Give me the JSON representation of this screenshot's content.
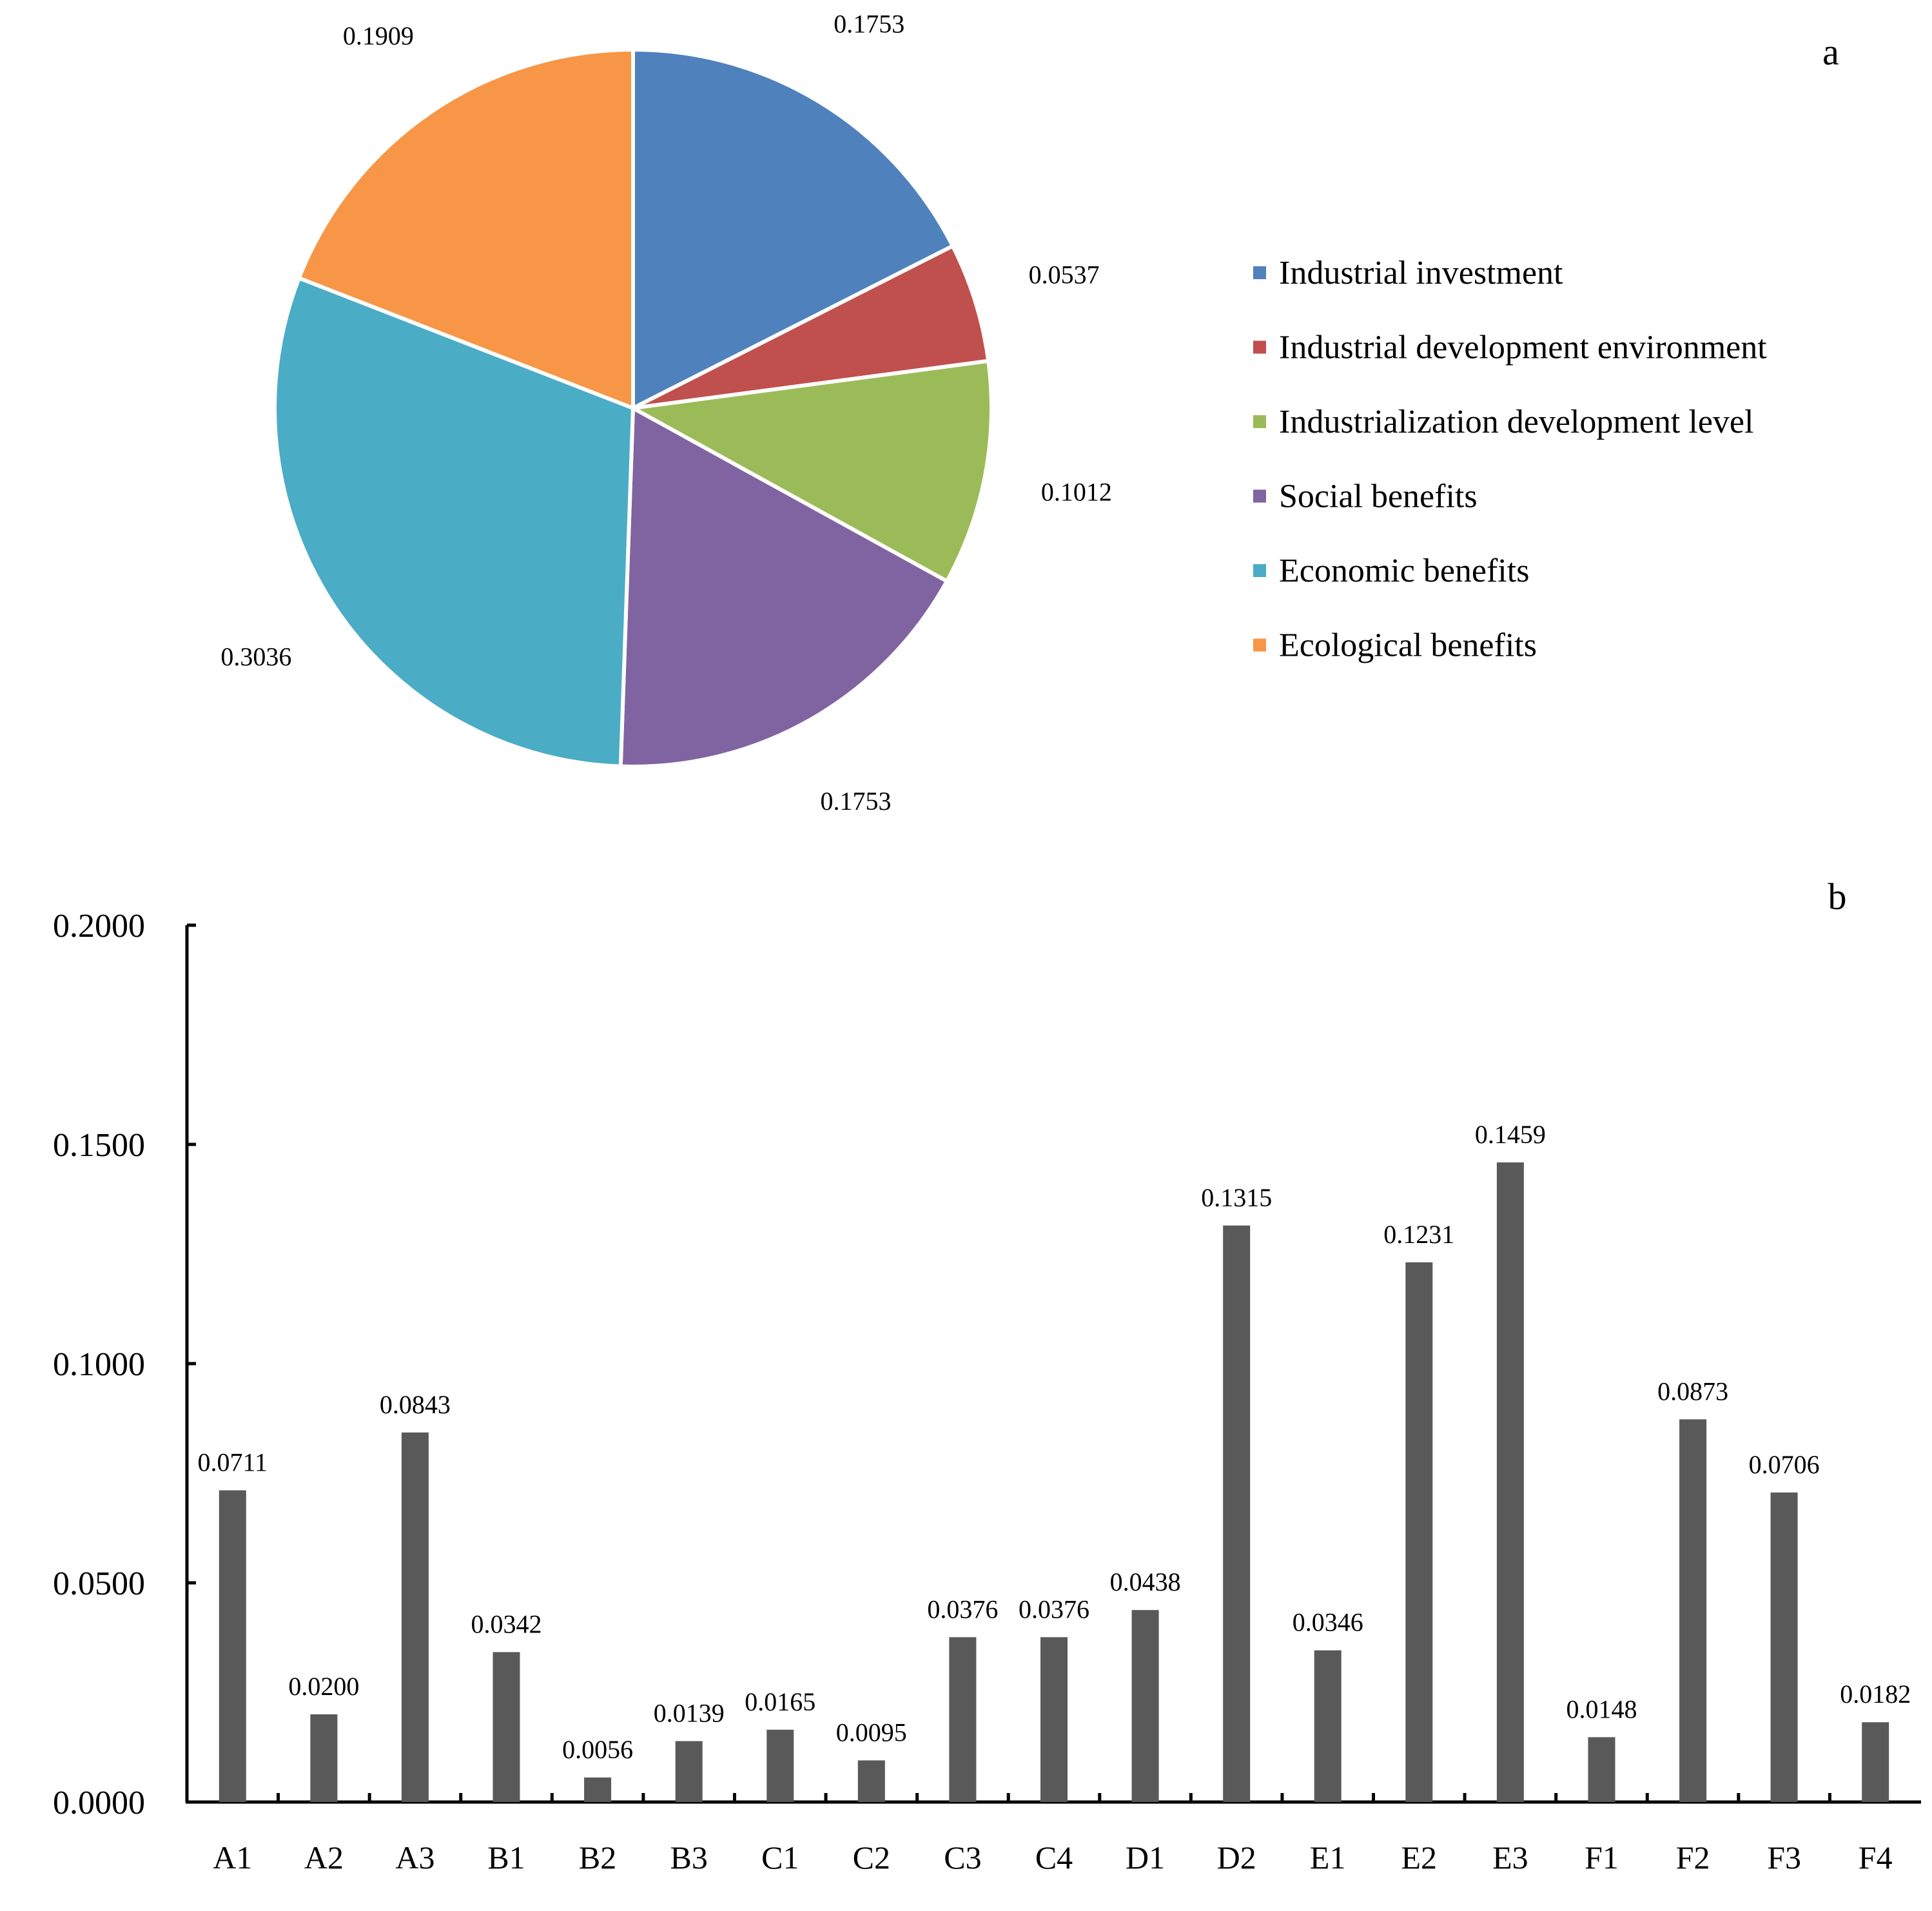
{
  "panels": {
    "a_label": "a",
    "b_label": "b"
  },
  "colors": {
    "industrial_investment": "#4F81BD",
    "industrial_development_environment": "#C0504D",
    "industrialization_development_level": "#9BBB59",
    "social_benefits": "#8064A2",
    "economic_benefits": "#4BACC6",
    "ecological_benefits": "#F79646",
    "bar": "#595959"
  },
  "chart_data": [
    {
      "type": "pie",
      "title": "a",
      "labels": [
        "Industrial investment",
        "Industrial development environment",
        "Industrialization development level",
        "Social benefits",
        "Economic benefits",
        "Ecological benefits"
      ],
      "values": [
        0.1753,
        0.0537,
        0.1012,
        0.1753,
        0.3036,
        0.1909
      ],
      "value_labels": [
        "0.1753",
        "0.0537",
        "0.1012",
        "0.1753",
        "0.3036",
        "0.1909"
      ],
      "colors": [
        "#4F81BD",
        "#C0504D",
        "#9BBB59",
        "#8064A2",
        "#4BACC6",
        "#F79646"
      ],
      "legend_position": "right"
    },
    {
      "type": "bar",
      "title": "b",
      "categories": [
        "A1",
        "A2",
        "A3",
        "B1",
        "B2",
        "B3",
        "C1",
        "C2",
        "C3",
        "C4",
        "D1",
        "D2",
        "E1",
        "E2",
        "E3",
        "F1",
        "F2",
        "F3",
        "F4"
      ],
      "values": [
        0.0711,
        0.02,
        0.0843,
        0.0342,
        0.0056,
        0.0139,
        0.0165,
        0.0095,
        0.0376,
        0.0376,
        0.0438,
        0.1315,
        0.0346,
        0.1231,
        0.1459,
        0.0148,
        0.0873,
        0.0706,
        0.0182
      ],
      "value_labels": [
        "0.0711",
        "0.0200",
        "0.0843",
        "0.0342",
        "0.0056",
        "0.0139",
        "0.0165",
        "0.0095",
        "0.0376",
        "0.0376",
        "0.0438",
        "0.1315",
        "0.0346",
        "0.1231",
        "0.1459",
        "0.0148",
        "0.0873",
        "0.0706",
        "0.0182"
      ],
      "ylim": [
        0,
        0.2
      ],
      "yticks": [
        0,
        0.05,
        0.1,
        0.15,
        0.2
      ],
      "ytick_labels": [
        "0.0000",
        "0.0500",
        "0.1000",
        "0.1500",
        "0.2000"
      ],
      "xlabel": "",
      "ylabel": "",
      "grid": false
    }
  ]
}
